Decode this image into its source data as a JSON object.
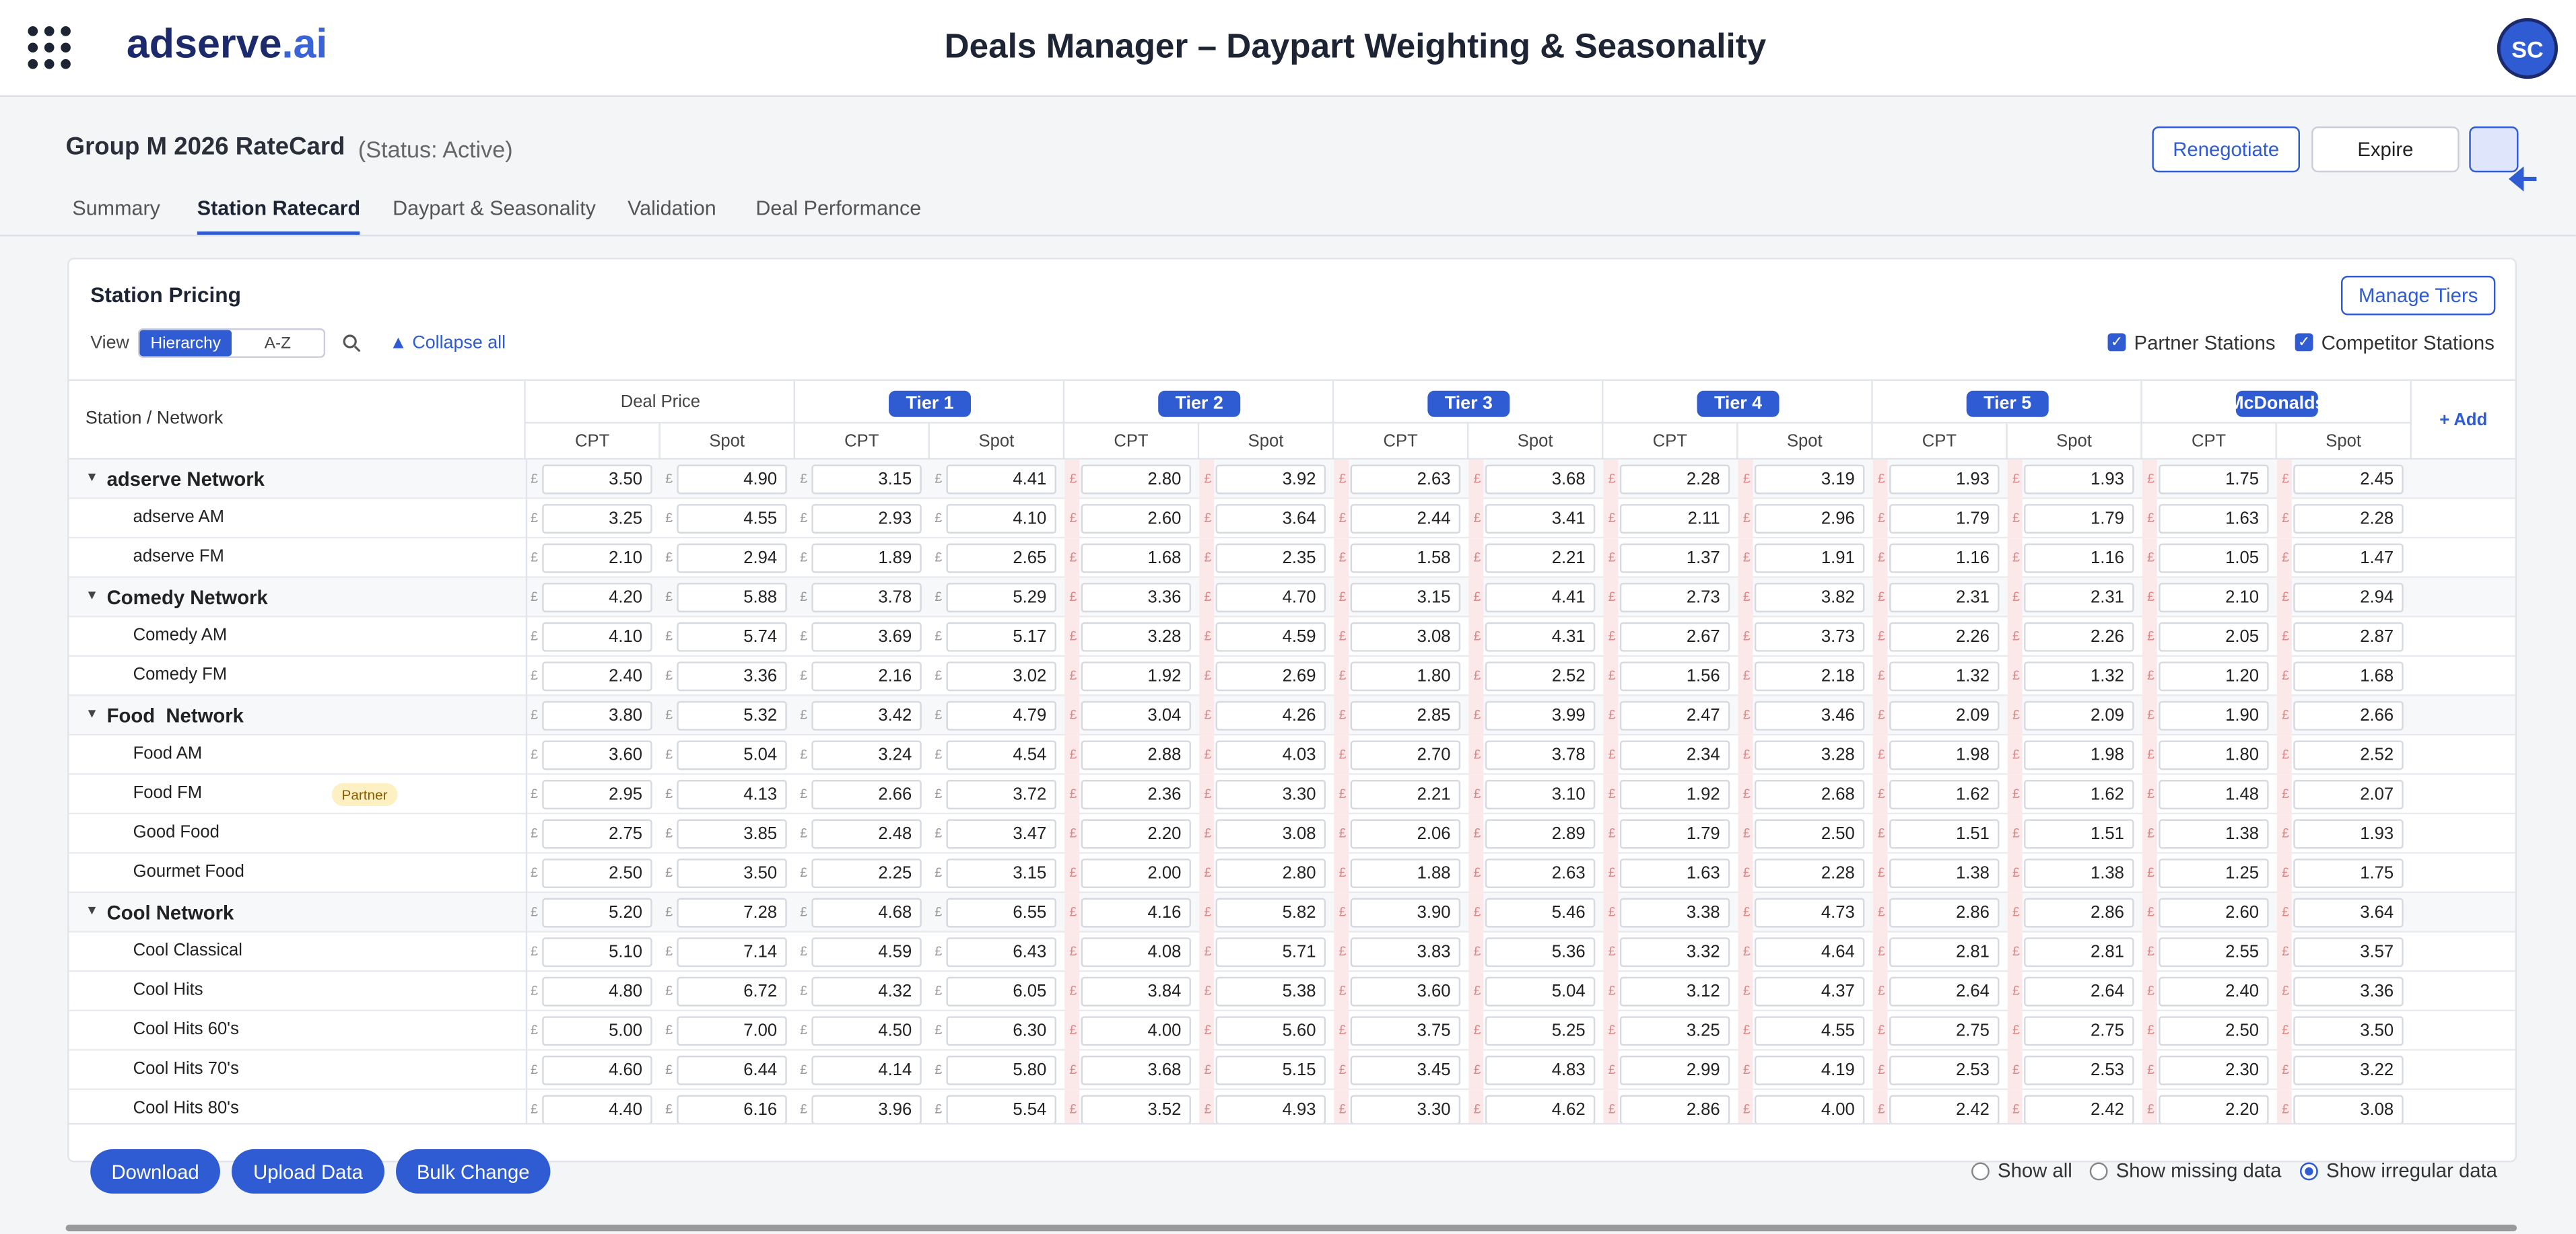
{
  "header": {
    "logo": "adserve",
    "logo_suffix": ".ai",
    "title": "Deals Manager – Daypart Weighting & Seasonality",
    "avatar": "SC"
  },
  "deal": {
    "name": "Group M 2026 RateCard",
    "status": "(Status: Active)",
    "actions": [
      "Renegotiate",
      "Expire"
    ]
  },
  "tabs": {
    "items": [
      "Summary",
      "Station Ratecard",
      "Daypart & Seasonality",
      "Validation",
      "Deal Performance"
    ],
    "active": 1
  },
  "card": {
    "title": "Station Pricing",
    "manage": "Manage Tiers",
    "view_label": "View",
    "views": [
      "Hierarchy",
      "A-Z"
    ],
    "active_view": 0,
    "collapse": "Collapse all",
    "filters": [
      {
        "label": "Partner Stations",
        "checked": true
      },
      {
        "label": "Competitor Stations",
        "checked": true
      }
    ]
  },
  "table": {
    "first_header": "Station / Network",
    "currency": "£",
    "columns": [
      "Deal Price",
      "Tier 1",
      "Tier 2",
      "Tier 3",
      "Tier 4",
      "Tier 5",
      "McDonalds"
    ],
    "subcolumns": [
      "CPT",
      "Spot"
    ],
    "add": "+ Add",
    "rows": [
      {
        "name": "adserve Network",
        "group": true,
        "values": [
          "3.50",
          "4.90",
          "3.15",
          "4.41",
          "2.80",
          "3.92",
          "2.63",
          "3.68",
          "2.28",
          "3.19",
          "1.93",
          "1.93",
          "1.75",
          "2.45"
        ]
      },
      {
        "name": "adserve AM",
        "group": false,
        "values": [
          "3.25",
          "4.55",
          "2.93",
          "4.10",
          "2.60",
          "3.64",
          "2.44",
          "3.41",
          "2.11",
          "2.96",
          "1.79",
          "1.79",
          "1.63",
          "2.28"
        ]
      },
      {
        "name": "adserve FM",
        "group": false,
        "values": [
          "2.10",
          "2.94",
          "1.89",
          "2.65",
          "1.68",
          "2.35",
          "1.58",
          "2.21",
          "1.37",
          "1.91",
          "1.16",
          "1.16",
          "1.05",
          "1.47"
        ]
      },
      {
        "name": "Comedy Network",
        "group": true,
        "values": [
          "4.20",
          "5.88",
          "3.78",
          "5.29",
          "3.36",
          "4.70",
          "3.15",
          "4.41",
          "2.73",
          "3.82",
          "2.31",
          "2.31",
          "2.10",
          "2.94"
        ]
      },
      {
        "name": "Comedy AM",
        "group": false,
        "values": [
          "4.10",
          "5.74",
          "3.69",
          "5.17",
          "3.28",
          "4.59",
          "3.08",
          "4.31",
          "2.67",
          "3.73",
          "2.26",
          "2.26",
          "2.05",
          "2.87"
        ]
      },
      {
        "name": "Comedy FM",
        "group": false,
        "values": [
          "2.40",
          "3.36",
          "2.16",
          "3.02",
          "1.92",
          "2.69",
          "1.80",
          "2.52",
          "1.56",
          "2.18",
          "1.32",
          "1.32",
          "1.20",
          "1.68"
        ]
      },
      {
        "name": "Food  Network",
        "group": true,
        "values": [
          "3.80",
          "5.32",
          "3.42",
          "4.79",
          "3.04",
          "4.26",
          "2.85",
          "3.99",
          "2.47",
          "3.46",
          "2.09",
          "2.09",
          "1.90",
          "2.66"
        ]
      },
      {
        "name": "Food AM",
        "group": false,
        "values": [
          "3.60",
          "5.04",
          "3.24",
          "4.54",
          "2.88",
          "4.03",
          "2.70",
          "3.78",
          "2.34",
          "3.28",
          "1.98",
          "1.98",
          "1.80",
          "2.52"
        ]
      },
      {
        "name": "Food FM",
        "group": false,
        "badge": "Partner",
        "values": [
          "2.95",
          "4.13",
          "2.66",
          "3.72",
          "2.36",
          "3.30",
          "2.21",
          "3.10",
          "1.92",
          "2.68",
          "1.62",
          "1.62",
          "1.48",
          "2.07"
        ]
      },
      {
        "name": "Good Food",
        "group": false,
        "values": [
          "2.75",
          "3.85",
          "2.48",
          "3.47",
          "2.20",
          "3.08",
          "2.06",
          "2.89",
          "1.79",
          "2.50",
          "1.51",
          "1.51",
          "1.38",
          "1.93"
        ]
      },
      {
        "name": "Gourmet Food",
        "group": false,
        "values": [
          "2.50",
          "3.50",
          "2.25",
          "3.15",
          "2.00",
          "2.80",
          "1.88",
          "2.63",
          "1.63",
          "2.28",
          "1.38",
          "1.38",
          "1.25",
          "1.75"
        ]
      },
      {
        "name": "Cool Network",
        "group": true,
        "values": [
          "5.20",
          "7.28",
          "4.68",
          "6.55",
          "4.16",
          "5.82",
          "3.90",
          "5.46",
          "3.38",
          "4.73",
          "2.86",
          "2.86",
          "2.60",
          "3.64"
        ]
      },
      {
        "name": "Cool Classical",
        "group": false,
        "values": [
          "5.10",
          "7.14",
          "4.59",
          "6.43",
          "4.08",
          "5.71",
          "3.83",
          "5.36",
          "3.32",
          "4.64",
          "2.81",
          "2.81",
          "2.55",
          "3.57"
        ]
      },
      {
        "name": "Cool Hits",
        "group": false,
        "values": [
          "4.80",
          "6.72",
          "4.32",
          "6.05",
          "3.84",
          "5.38",
          "3.60",
          "5.04",
          "3.12",
          "4.37",
          "2.64",
          "2.64",
          "2.40",
          "3.36"
        ]
      },
      {
        "name": "Cool Hits 60's",
        "group": false,
        "values": [
          "5.00",
          "7.00",
          "4.50",
          "6.30",
          "4.00",
          "5.60",
          "3.75",
          "5.25",
          "3.25",
          "4.55",
          "2.75",
          "2.75",
          "2.50",
          "3.50"
        ]
      },
      {
        "name": "Cool Hits 70's",
        "group": false,
        "values": [
          "4.60",
          "6.44",
          "4.14",
          "5.80",
          "3.68",
          "5.15",
          "3.45",
          "4.83",
          "2.99",
          "4.19",
          "2.53",
          "2.53",
          "2.30",
          "3.22"
        ]
      },
      {
        "name": "Cool Hits 80's",
        "group": false,
        "values": [
          "4.40",
          "6.16",
          "3.96",
          "5.54",
          "3.52",
          "4.93",
          "3.30",
          "4.62",
          "2.86",
          "4.00",
          "2.42",
          "2.42",
          "2.20",
          "3.08"
        ]
      }
    ]
  },
  "footer": {
    "buttons": [
      "Download",
      "Upload Data",
      "Bulk Change"
    ],
    "radios": {
      "options": [
        "Show all",
        "Show missing data",
        "Show irregular data"
      ],
      "selected": 2
    }
  }
}
